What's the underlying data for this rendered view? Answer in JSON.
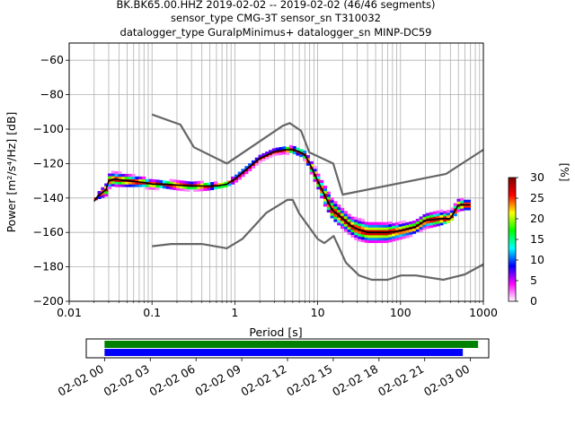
{
  "chart_data": {
    "type": "heatmap",
    "title_lines": [
      "BK.BK65.00.HHZ   2019-02-02 -- 2019-02-02  (46/46 segments)",
      "sensor_type CMG-3T sensor_sn T310032",
      "datalogger_type GuralpMinimus+ datalogger_sn MINP-DC59"
    ],
    "xlabel": "Period [s]",
    "ylabel": "Power [m²/s⁴/Hz] [dB]",
    "x_scale": "log",
    "xlim": [
      0.01,
      1000
    ],
    "ylim": [
      -200,
      -50
    ],
    "x_ticks": [
      {
        "value": 0.01,
        "label": "0.01"
      },
      {
        "value": 0.1,
        "label": "0.1"
      },
      {
        "value": 1,
        "label": "1"
      },
      {
        "value": 10,
        "label": "10"
      },
      {
        "value": 100,
        "label": "100"
      },
      {
        "value": 1000,
        "label": "1000"
      }
    ],
    "y_ticks": [
      {
        "value": -200,
        "label": "−200"
      },
      {
        "value": -180,
        "label": "−180"
      },
      {
        "value": -160,
        "label": "−160"
      },
      {
        "value": -140,
        "label": "−140"
      },
      {
        "value": -120,
        "label": "−120"
      },
      {
        "value": -100,
        "label": "−100"
      },
      {
        "value": -80,
        "label": "−80"
      },
      {
        "value": -60,
        "label": "−60"
      }
    ],
    "grid": true,
    "colorbar": {
      "label": "[%]",
      "range": [
        0,
        30
      ],
      "ticks": [
        {
          "value": 0,
          "label": "0"
        },
        {
          "value": 5,
          "label": "5"
        },
        {
          "value": 10,
          "label": "10"
        },
        {
          "value": 15,
          "label": "15"
        },
        {
          "value": 20,
          "label": "20"
        },
        {
          "value": 25,
          "label": "25"
        },
        {
          "value": 30,
          "label": "30"
        }
      ],
      "colors": [
        "#ffffff",
        "#ff00ff",
        "#0000ff",
        "#00ffff",
        "#00ff00",
        "#ffff00",
        "#ff0000",
        "#7f0000"
      ]
    },
    "nhnm": {
      "x": [
        0.1,
        0.22,
        0.32,
        0.8,
        3.8,
        4.6,
        6.3,
        7.9,
        15.4,
        20,
        354.8,
        1000
      ],
      "y": [
        -91.5,
        -97.4,
        -110.5,
        -120,
        -98,
        -96.5,
        -101,
        -113.5,
        -120,
        -138,
        -126,
        -112
      ]
    },
    "nlnm": {
      "x": [
        0.1,
        0.17,
        0.4,
        0.8,
        1.24,
        2.4,
        4.3,
        5,
        6,
        10,
        12,
        15.6,
        21.9,
        31.6,
        45,
        70,
        101,
        154,
        328,
        600,
        1000
      ],
      "y": [
        -168,
        -166.7,
        -166.7,
        -169.2,
        -163.7,
        -148.6,
        -141.1,
        -141.1,
        -149,
        -163.8,
        -166.2,
        -162.1,
        -177.5,
        -185,
        -187.5,
        -187.5,
        -185,
        -185,
        -187.5,
        -184.4,
        -178.5
      ]
    },
    "mode": {
      "x": [
        0.02,
        0.022,
        0.025,
        0.028,
        0.03,
        0.035,
        0.05,
        0.08,
        0.1,
        0.15,
        0.2,
        0.3,
        0.4,
        0.6,
        0.8,
        1,
        1.5,
        2,
        3,
        4,
        5,
        6,
        7,
        8,
        10,
        12,
        15,
        20,
        25,
        30,
        40,
        50,
        70,
        100,
        150,
        200,
        300,
        400,
        500,
        600,
        700
      ],
      "y": [
        -142,
        -139,
        -137,
        -135,
        -130,
        -129,
        -130,
        -131,
        -132,
        -132,
        -132.5,
        -133,
        -133,
        -133,
        -132,
        -129,
        -122,
        -117,
        -113,
        -112,
        -112,
        -113,
        -115,
        -120,
        -130,
        -138,
        -147,
        -152,
        -156,
        -158,
        -160,
        -160,
        -160,
        -159,
        -157,
        -153,
        -152,
        -152,
        -144,
        -144,
        -144
      ]
    },
    "pdf_upper": {
      "x": [
        0.02,
        0.03,
        0.035,
        0.05,
        0.08,
        0.1,
        0.15,
        0.2,
        0.3,
        0.5,
        0.8,
        1,
        1.5,
        2,
        3,
        4,
        5,
        7,
        8,
        10,
        12,
        15,
        20,
        25,
        30,
        40,
        50,
        70,
        100,
        150,
        200,
        300,
        400,
        500,
        600,
        700
      ],
      "y": [
        -140,
        -124,
        -120,
        -121,
        -124,
        -126,
        -127,
        -128,
        -129,
        -129,
        -129,
        -126,
        -119,
        -115,
        -111,
        -109,
        -109,
        -110,
        -112,
        -118,
        -122,
        -128,
        -137,
        -142,
        -143,
        -144,
        -144,
        -145,
        -147,
        -148,
        -142,
        -140,
        -138,
        -135,
        -135,
        -135
      ]
    },
    "pdf_lower": {
      "x": [
        0.02,
        0.03,
        0.035,
        0.05,
        0.08,
        0.1,
        0.15,
        0.2,
        0.3,
        0.5,
        0.8,
        1,
        1.5,
        2,
        3,
        4,
        5,
        7,
        8,
        10,
        12,
        15,
        20,
        25,
        30,
        40,
        50,
        70,
        100,
        150,
        200,
        300,
        400,
        500,
        600,
        700
      ],
      "y": [
        -143,
        -140,
        -135,
        -135,
        -135,
        -135,
        -136,
        -137,
        -138,
        -137,
        -135,
        -133,
        -126,
        -121,
        -117,
        -116,
        -117,
        -120,
        -124,
        -134,
        -144,
        -152,
        -158,
        -162,
        -165,
        -166,
        -166,
        -166,
        -164,
        -162,
        -158,
        -156,
        -154,
        -148,
        -147,
        -147
      ]
    },
    "timeline": {
      "tick_labels": [
        "02-02 00",
        "02-02 03",
        "02-02 06",
        "02-02 09",
        "02-02 12",
        "02-02 15",
        "02-02 18",
        "02-02 21",
        "02-03 00"
      ],
      "range_hours": [
        -1.2,
        25.2
      ],
      "data_available": [
        0,
        24.5
      ],
      "psd_segments": [
        0,
        23.5
      ],
      "data_color": "#008000",
      "psd_color": "#0000ff"
    }
  }
}
